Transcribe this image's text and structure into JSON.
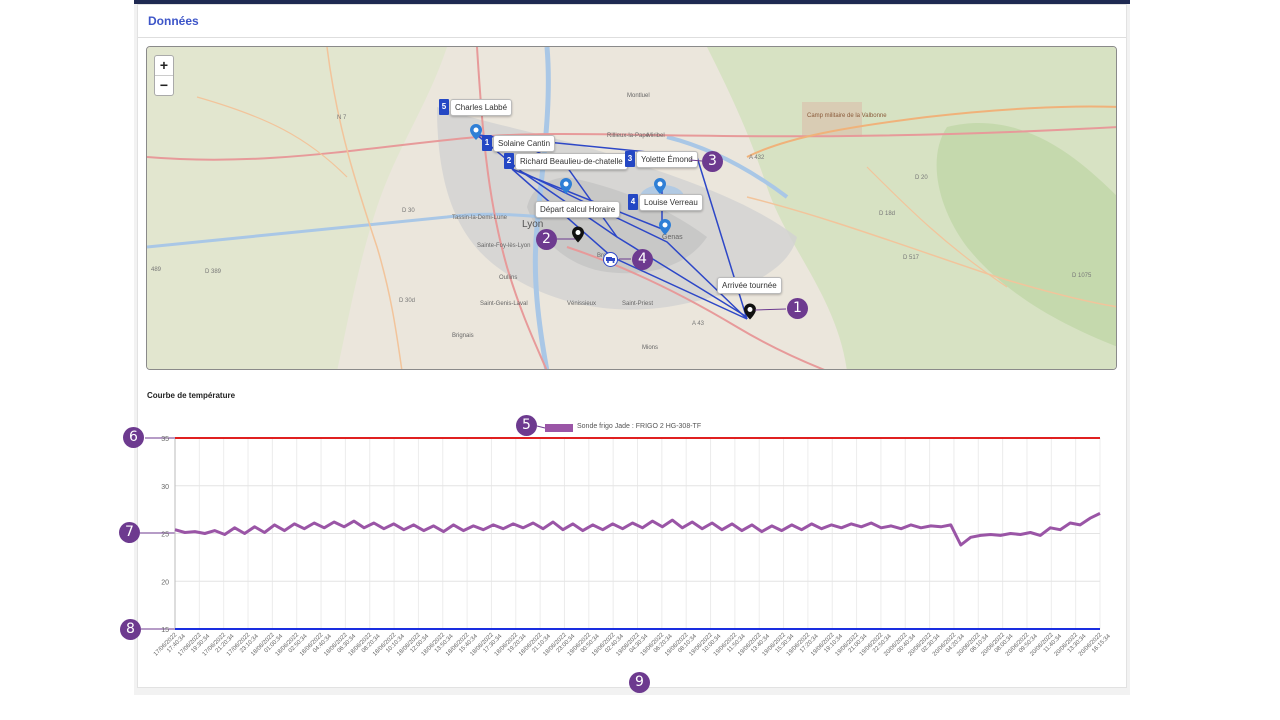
{
  "panel": {
    "title": "Données"
  },
  "map": {
    "zoom_in": "+",
    "zoom_out": "−",
    "place_labels": [
      "Lyon",
      "Rillieux-la-Pape",
      "Genas",
      "Vénissieux",
      "Saint-Priest",
      "Mions",
      "Bron",
      "Sainte-Foy-lès-Lyon",
      "Oullins",
      "Saint-Genis-Laval",
      "Brignais",
      "Tassin-la-Demi-Lune",
      "Montluel",
      "Camp militaire de la Valbonne",
      "Miribel"
    ],
    "road_labels": [
      "N 7",
      "A 432",
      "A 43",
      "D 30",
      "D 389",
      "D 30d",
      "D 20",
      "D 18d",
      "D 517",
      "D 1075",
      "489"
    ],
    "stops": [
      {
        "number": "5",
        "name": "Charles Labbé"
      },
      {
        "number": "1",
        "name": "Solaine Cantin"
      },
      {
        "number": "2",
        "name": "Richard Beaulieu-de-chatelle"
      },
      {
        "number": "3",
        "name": "Yolette Émond"
      },
      {
        "number": "4",
        "name": "Louise Verreau"
      }
    ],
    "depart_label": "Départ calcul Horaire",
    "arrival_label": "Arrivée tournée",
    "route_color": "#2d47c7"
  },
  "callouts": [
    "1",
    "2",
    "3",
    "4",
    "5",
    "6",
    "7",
    "8",
    "9"
  ],
  "chart_title": "Courbe de température",
  "chart_data": {
    "type": "line",
    "title": "",
    "xlabel": "",
    "ylabel": "",
    "ylim": [
      15,
      35
    ],
    "yticks": [
      "15",
      "20",
      "25",
      "30",
      "35"
    ],
    "legend": "top-center",
    "grid": true,
    "series": [
      {
        "name": "Sonde frigo Jade : FRIGO 2 HG-308-TF",
        "color": "#9a55a6"
      }
    ],
    "threshold_high": {
      "value": 35,
      "color": "#e02020"
    },
    "threshold_low": {
      "value": 15,
      "color": "#1a2ee0"
    },
    "x_start": "17/06/2022 17:40:34",
    "x_end": "20/06/2022 16:15:34",
    "x_labels": [
      "17/06/2022 17:40:34",
      "17/06/2022 19:30:34",
      "17/06/2022 21:20:34",
      "17/06/2022 23:10:34",
      "18/06/2022 01:00:34",
      "18/06/2022 02:50:34",
      "18/06/2022 04:40:34",
      "18/06/2022 06:30:34",
      "18/06/2022 08:20:34",
      "18/06/2022 10:10:34",
      "18/06/2022 12:00:34",
      "18/06/2022 13:50:34",
      "18/06/2022 15:40:34",
      "18/06/2022 17:30:34",
      "18/06/2022 19:20:34",
      "18/06/2022 21:10:34",
      "18/06/2022 23:00:34",
      "19/06/2022 00:50:34",
      "19/06/2022 02:40:34",
      "19/06/2022 04:30:34",
      "19/06/2022 06:20:34",
      "19/06/2022 08:10:34",
      "19/06/2022 10:00:34",
      "19/06/2022 11:50:34",
      "19/06/2022 13:40:34",
      "19/06/2022 15:30:34",
      "19/06/2022 17:20:34",
      "19/06/2022 19:10:34",
      "19/06/2022 21:00:34",
      "19/06/2022 22:50:34",
      "20/06/2022 00:40:34",
      "20/06/2022 02:30:34",
      "20/06/2022 04:20:34",
      "20/06/2022 06:10:34",
      "20/06/2022 08:00:34",
      "20/06/2022 09:50:34",
      "20/06/2022 11:40:34",
      "20/06/2022 13:30:34",
      "20/06/2022 16:15:34"
    ],
    "values": [
      25.4,
      25.1,
      25.2,
      25.0,
      25.3,
      24.9,
      25.6,
      25.0,
      25.7,
      25.1,
      25.9,
      25.3,
      26.0,
      25.5,
      26.1,
      25.6,
      26.2,
      25.7,
      26.3,
      25.6,
      26.1,
      25.5,
      26.0,
      25.4,
      25.9,
      25.3,
      25.8,
      25.2,
      25.9,
      25.3,
      25.8,
      25.4,
      25.9,
      25.5,
      26.0,
      25.6,
      26.1,
      25.5,
      26.2,
      25.4,
      26.0,
      25.3,
      25.9,
      25.4,
      26.0,
      25.5,
      26.1,
      25.6,
      26.3,
      25.7,
      26.4,
      25.6,
      26.2,
      25.5,
      26.1,
      25.4,
      26.0,
      25.3,
      25.9,
      25.2,
      25.8,
      25.3,
      25.9,
      25.4,
      26.0,
      25.5,
      25.9,
      25.6,
      26.0,
      25.7,
      26.1,
      25.6,
      25.8,
      25.5,
      25.9,
      25.6,
      25.8,
      25.7,
      25.9,
      23.8,
      24.6,
      24.8,
      24.9,
      24.8,
      25.0,
      24.9,
      25.1,
      24.8,
      25.6,
      25.4,
      26.1,
      25.9,
      26.6,
      27.1
    ]
  }
}
